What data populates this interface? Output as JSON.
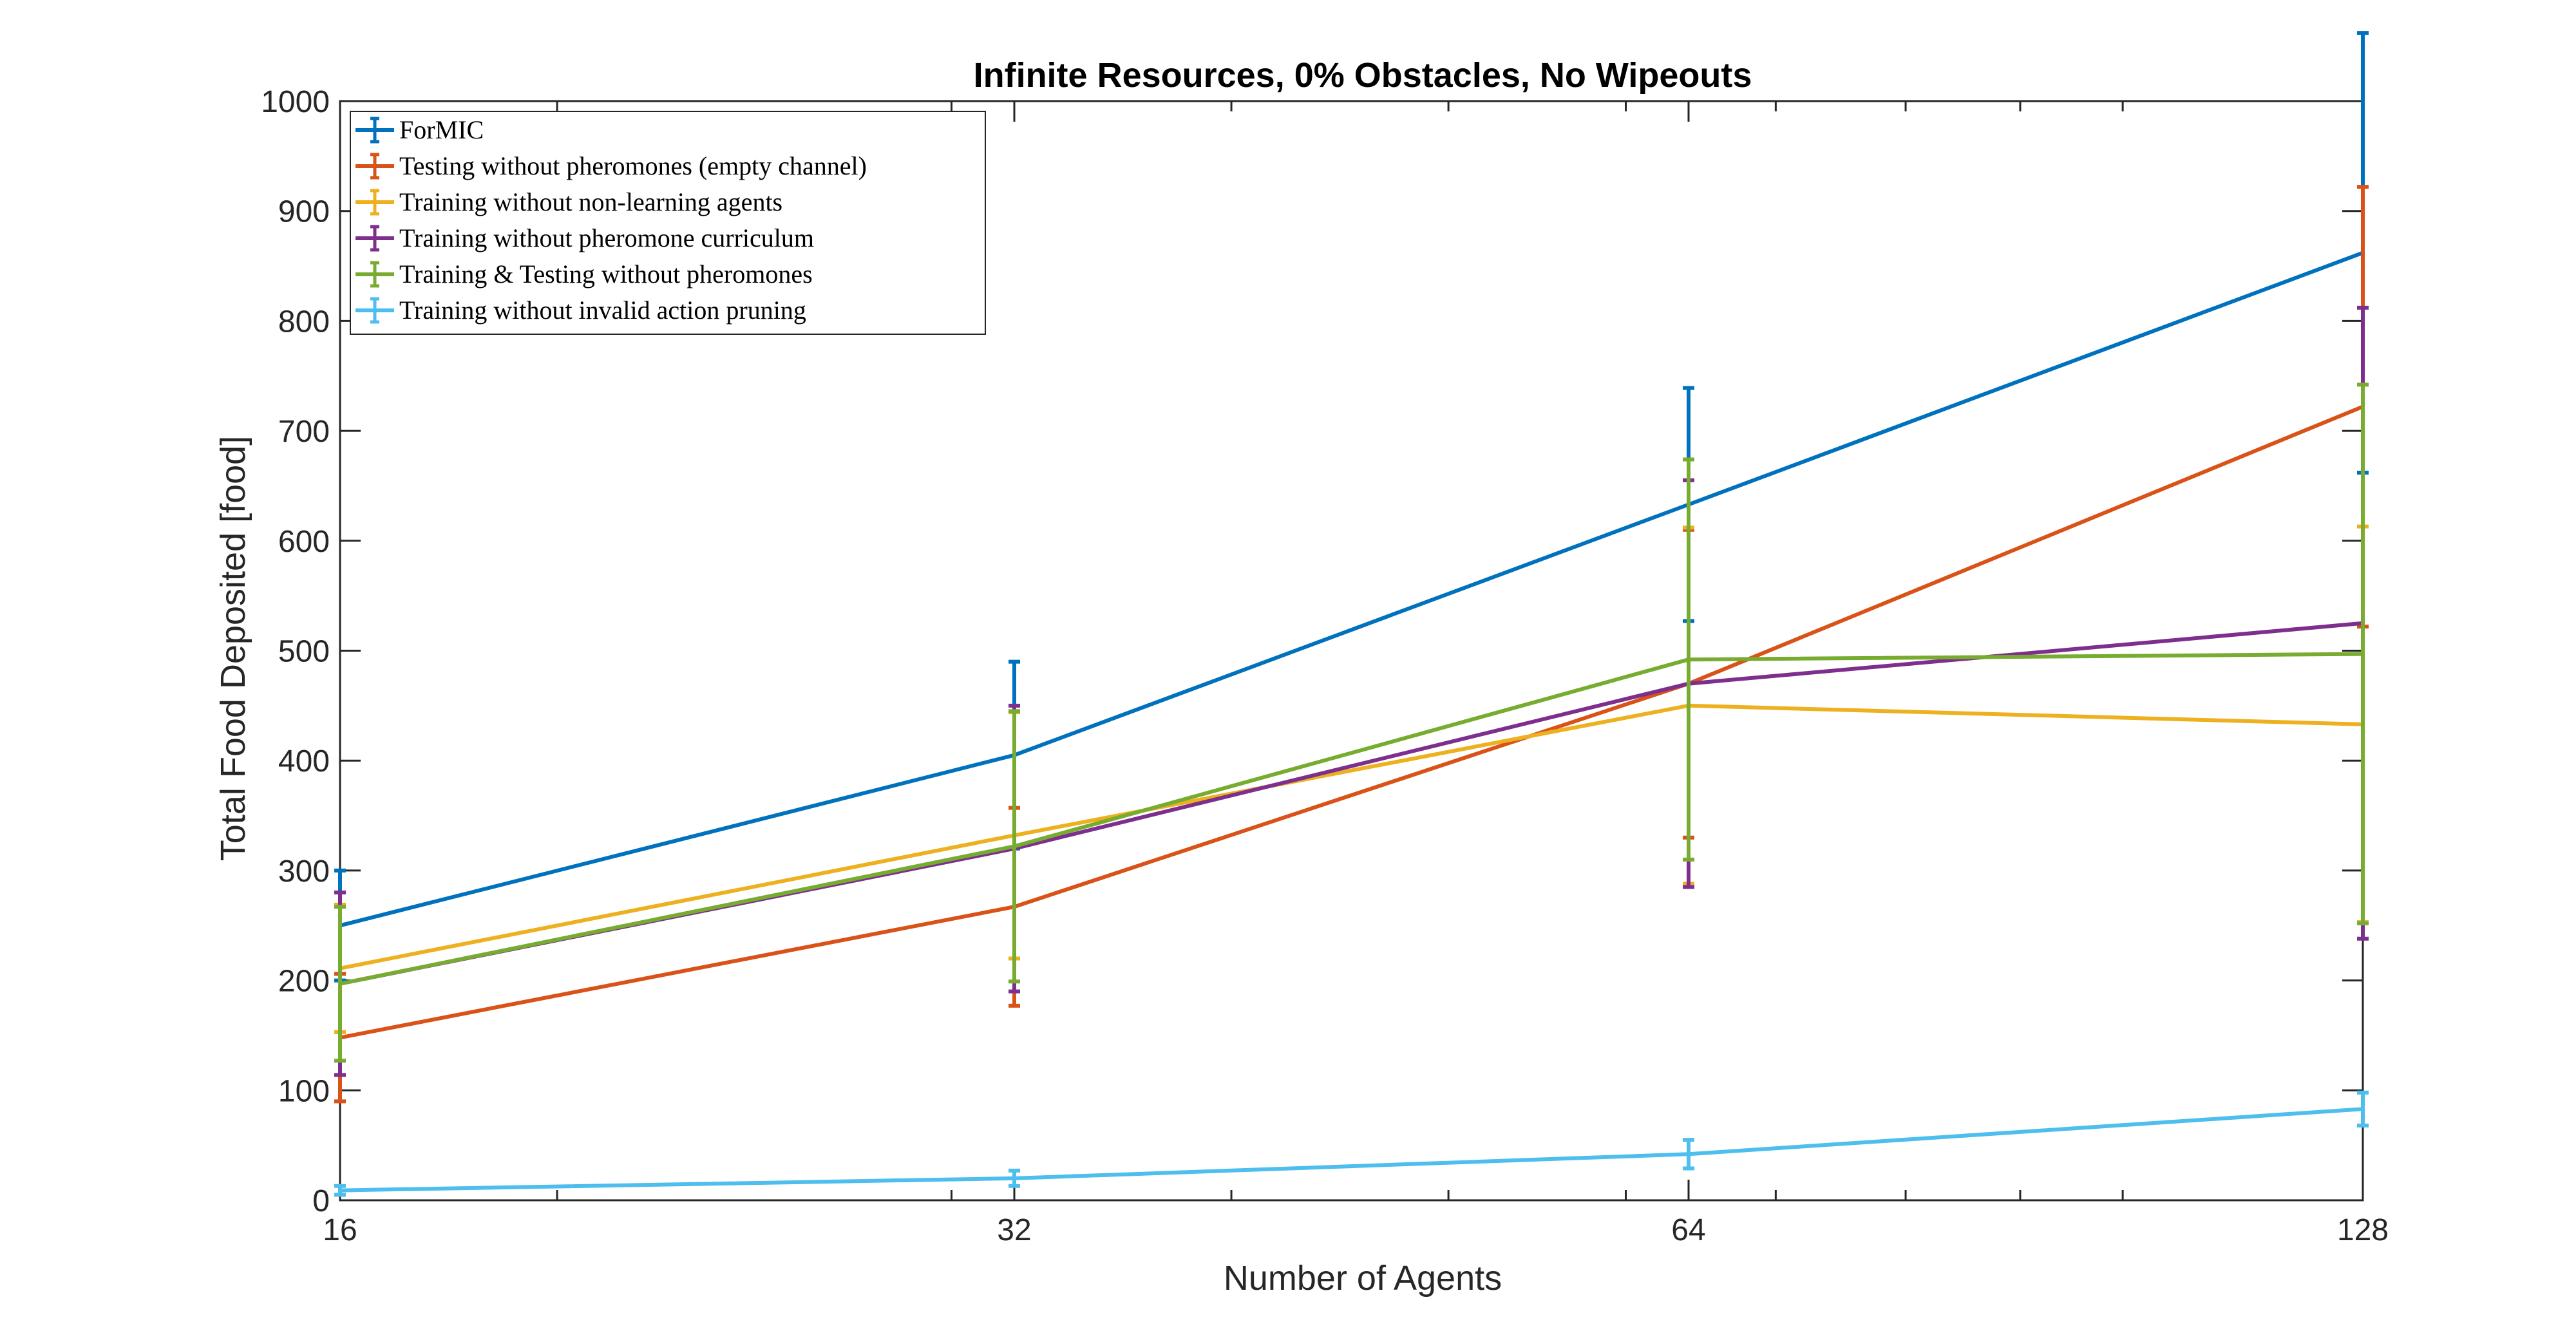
{
  "chart_data": {
    "type": "line",
    "title": "Infinite Resources, 0% Obstacles, No Wipeouts",
    "xlabel": "Number of Agents",
    "ylabel": "Total Food Deposited [food]",
    "x": [
      16,
      32,
      64,
      128
    ],
    "x_scale": "log2",
    "xlim": [
      16,
      128
    ],
    "ylim": [
      0,
      1000
    ],
    "xticks": [
      "16",
      "32",
      "64",
      "128"
    ],
    "yticks": [
      "0",
      "100",
      "200",
      "300",
      "400",
      "500",
      "600",
      "700",
      "800",
      "900",
      "1000"
    ],
    "legend_position": "top-left",
    "grid": false,
    "series": [
      {
        "name": "ForMIC",
        "color": "#0072BD",
        "values": [
          250,
          405,
          633,
          862
        ],
        "err": [
          50,
          85,
          106,
          200
        ]
      },
      {
        "name": "Testing without pheromones (empty channel)",
        "color": "#D95319",
        "values": [
          148,
          267,
          470,
          722
        ],
        "err": [
          58,
          90,
          140,
          200
        ]
      },
      {
        "name": "Training without non-learning agents",
        "color": "#EDB120",
        "values": [
          211,
          332,
          450,
          433
        ],
        "err": [
          58,
          112,
          162,
          180
        ]
      },
      {
        "name": "Training without pheromone curriculum",
        "color": "#7E2F8E",
        "values": [
          197,
          320,
          470,
          525
        ],
        "err": [
          83,
          130,
          185,
          287
        ]
      },
      {
        "name": "Training & Testing without pheromones",
        "color": "#77AC30",
        "values": [
          197,
          322,
          492,
          497
        ],
        "err": [
          70,
          123,
          182,
          245
        ]
      },
      {
        "name": "Training without invalid action pruning",
        "color": "#4DBEEE",
        "values": [
          9,
          20,
          42,
          83
        ],
        "err": [
          4,
          7,
          13,
          15
        ]
      }
    ]
  }
}
